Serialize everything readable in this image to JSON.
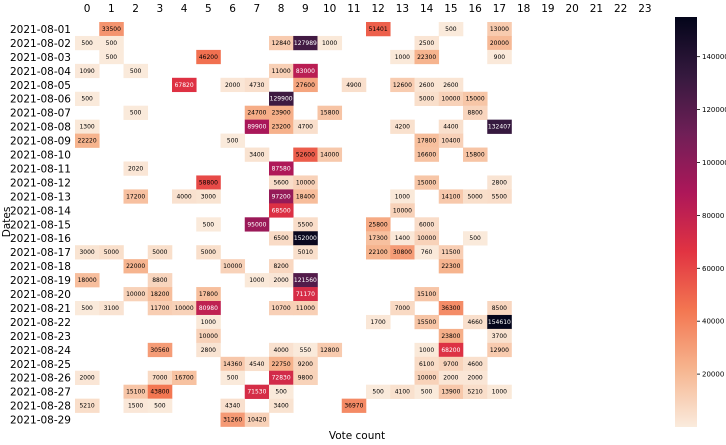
{
  "chart_data": {
    "type": "heatmap",
    "xlabel": "Vote count",
    "ylabel": "Dates",
    "x_categories": [
      "0",
      "1",
      "2",
      "3",
      "4",
      "5",
      "6",
      "7",
      "8",
      "9",
      "10",
      "11",
      "12",
      "13",
      "14",
      "15",
      "16",
      "17",
      "18",
      "19",
      "20",
      "21",
      "22",
      "23"
    ],
    "y_categories": [
      "2021-08-01",
      "2021-08-02",
      "2021-08-03",
      "2021-08-04",
      "2021-08-05",
      "2021-08-06",
      "2021-08-07",
      "2021-08-08",
      "2021-08-09",
      "2021-08-10",
      "2021-08-11",
      "2021-08-12",
      "2021-08-13",
      "2021-08-14",
      "2021-08-15",
      "2021-08-16",
      "2021-08-17",
      "2021-08-18",
      "2021-08-19",
      "2021-08-20",
      "2021-08-21",
      "2021-08-22",
      "2021-08-23",
      "2021-08-24",
      "2021-08-25",
      "2021-08-26",
      "2021-08-27",
      "2021-08-28",
      "2021-08-29"
    ],
    "x_ticks_position": "top",
    "value_range": [
      0,
      155000
    ],
    "colormap": [
      "#faebdd",
      "#f6b48e",
      "#f37651",
      "#e13342",
      "#ad1759",
      "#701f57",
      "#35193e",
      "#03051a"
    ],
    "colorbar": {
      "ticks": [
        20000,
        40000,
        60000,
        80000,
        100000,
        120000,
        140000
      ],
      "tick_labels": [
        "20000",
        "40000",
        "60000",
        "80000",
        "100000",
        "120000",
        "140000"
      ]
    },
    "grid": false,
    "cells": [
      [
        0,
        1,
        33500
      ],
      [
        0,
        12,
        51401
      ],
      [
        0,
        15,
        500
      ],
      [
        0,
        17,
        13000
      ],
      [
        1,
        0,
        500
      ],
      [
        1,
        1,
        500
      ],
      [
        1,
        8,
        12840
      ],
      [
        1,
        9,
        127989
      ],
      [
        1,
        10,
        1000
      ],
      [
        1,
        14,
        2500
      ],
      [
        1,
        17,
        20000
      ],
      [
        2,
        1,
        500
      ],
      [
        2,
        5,
        46200
      ],
      [
        2,
        13,
        1000
      ],
      [
        2,
        14,
        22300
      ],
      [
        2,
        17,
        900
      ],
      [
        3,
        0,
        1090
      ],
      [
        3,
        2,
        500
      ],
      [
        3,
        8,
        11000
      ],
      [
        3,
        9,
        83000
      ],
      [
        4,
        4,
        67820
      ],
      [
        4,
        6,
        2000
      ],
      [
        4,
        7,
        4730
      ],
      [
        4,
        9,
        27600
      ],
      [
        4,
        11,
        4900
      ],
      [
        4,
        13,
        12600
      ],
      [
        4,
        14,
        2600
      ],
      [
        4,
        15,
        2600
      ],
      [
        5,
        0,
        500
      ],
      [
        5,
        8,
        129900
      ],
      [
        5,
        14,
        5000
      ],
      [
        5,
        15,
        10000
      ],
      [
        5,
        16,
        15000
      ],
      [
        6,
        2,
        500
      ],
      [
        6,
        7,
        24700
      ],
      [
        6,
        8,
        23900
      ],
      [
        6,
        10,
        15800
      ],
      [
        6,
        16,
        8800
      ],
      [
        7,
        0,
        1300
      ],
      [
        7,
        7,
        89900
      ],
      [
        7,
        8,
        23200
      ],
      [
        7,
        9,
        4700
      ],
      [
        7,
        13,
        4200
      ],
      [
        7,
        15,
        4400
      ],
      [
        7,
        17,
        132407
      ],
      [
        8,
        0,
        22220
      ],
      [
        8,
        6,
        500
      ],
      [
        8,
        14,
        17800
      ],
      [
        8,
        15,
        10400
      ],
      [
        9,
        7,
        3400
      ],
      [
        9,
        9,
        52600
      ],
      [
        9,
        10,
        14000
      ],
      [
        9,
        14,
        16600
      ],
      [
        9,
        16,
        15800
      ],
      [
        10,
        2,
        2020
      ],
      [
        10,
        8,
        87580
      ],
      [
        11,
        5,
        58800
      ],
      [
        11,
        8,
        5600
      ],
      [
        11,
        9,
        10000
      ],
      [
        11,
        14,
        15000
      ],
      [
        11,
        17,
        2800
      ],
      [
        12,
        2,
        17200
      ],
      [
        12,
        4,
        4000
      ],
      [
        12,
        5,
        3000
      ],
      [
        12,
        8,
        97200
      ],
      [
        12,
        9,
        18400
      ],
      [
        12,
        13,
        1000
      ],
      [
        12,
        15,
        14100
      ],
      [
        12,
        16,
        5000
      ],
      [
        12,
        17,
        5500
      ],
      [
        13,
        8,
        68500
      ],
      [
        13,
        13,
        10000
      ],
      [
        14,
        5,
        500
      ],
      [
        14,
        7,
        95000
      ],
      [
        14,
        9,
        5500
      ],
      [
        14,
        12,
        25800
      ],
      [
        14,
        14,
        6000
      ],
      [
        15,
        8,
        6500
      ],
      [
        15,
        9,
        152000
      ],
      [
        15,
        12,
        17300
      ],
      [
        15,
        13,
        1400
      ],
      [
        15,
        14,
        10000
      ],
      [
        15,
        16,
        500
      ],
      [
        16,
        0,
        3000
      ],
      [
        16,
        1,
        5000
      ],
      [
        16,
        3,
        5000
      ],
      [
        16,
        5,
        5000
      ],
      [
        16,
        9,
        5010
      ],
      [
        16,
        12,
        22100
      ],
      [
        16,
        13,
        30800
      ],
      [
        16,
        14,
        760
      ],
      [
        16,
        15,
        11500
      ],
      [
        17,
        2,
        22000
      ],
      [
        17,
        6,
        10000
      ],
      [
        17,
        8,
        8200
      ],
      [
        17,
        15,
        22300
      ],
      [
        18,
        0,
        18000
      ],
      [
        18,
        3,
        8800
      ],
      [
        18,
        7,
        1000
      ],
      [
        18,
        8,
        2000
      ],
      [
        18,
        9,
        121560
      ],
      [
        19,
        2,
        10000
      ],
      [
        19,
        3,
        18200
      ],
      [
        19,
        5,
        17800
      ],
      [
        19,
        9,
        71170
      ],
      [
        19,
        14,
        15100
      ],
      [
        20,
        0,
        500
      ],
      [
        20,
        1,
        3100
      ],
      [
        20,
        3,
        11700
      ],
      [
        20,
        4,
        10000
      ],
      [
        20,
        5,
        80980
      ],
      [
        20,
        8,
        10700
      ],
      [
        20,
        9,
        11000
      ],
      [
        20,
        13,
        7000
      ],
      [
        20,
        15,
        36300
      ],
      [
        20,
        17,
        8500
      ],
      [
        21,
        5,
        1000
      ],
      [
        21,
        12,
        1700
      ],
      [
        21,
        14,
        15500
      ],
      [
        21,
        16,
        4660
      ],
      [
        21,
        17,
        154610
      ],
      [
        22,
        5,
        10000
      ],
      [
        22,
        15,
        23800
      ],
      [
        22,
        17,
        3700
      ],
      [
        23,
        3,
        30560
      ],
      [
        23,
        5,
        2800
      ],
      [
        23,
        8,
        4000
      ],
      [
        23,
        9,
        550
      ],
      [
        23,
        10,
        12800
      ],
      [
        23,
        14,
        1000
      ],
      [
        23,
        15,
        68200
      ],
      [
        23,
        17,
        12900
      ],
      [
        24,
        6,
        14360
      ],
      [
        24,
        7,
        4540
      ],
      [
        24,
        8,
        22750
      ],
      [
        24,
        9,
        9200
      ],
      [
        24,
        14,
        6100
      ],
      [
        24,
        15,
        9700
      ],
      [
        24,
        16,
        4600
      ],
      [
        25,
        0,
        2000
      ],
      [
        25,
        3,
        7000
      ],
      [
        25,
        4,
        16700
      ],
      [
        25,
        6,
        500
      ],
      [
        25,
        8,
        72830
      ],
      [
        25,
        9,
        9800
      ],
      [
        25,
        14,
        10000
      ],
      [
        25,
        15,
        2000
      ],
      [
        25,
        16,
        2000
      ],
      [
        26,
        2,
        15100
      ],
      [
        26,
        3,
        43800
      ],
      [
        26,
        7,
        71530
      ],
      [
        26,
        8,
        500
      ],
      [
        26,
        12,
        500
      ],
      [
        26,
        13,
        4100
      ],
      [
        26,
        14,
        500
      ],
      [
        26,
        15,
        13900
      ],
      [
        26,
        16,
        5210
      ],
      [
        26,
        17,
        1000
      ],
      [
        27,
        0,
        5210
      ],
      [
        27,
        2,
        1500
      ],
      [
        27,
        3,
        500
      ],
      [
        27,
        6,
        4340
      ],
      [
        27,
        8,
        3400
      ],
      [
        27,
        11,
        36970
      ],
      [
        28,
        6,
        31260
      ],
      [
        28,
        7,
        10420
      ]
    ]
  }
}
